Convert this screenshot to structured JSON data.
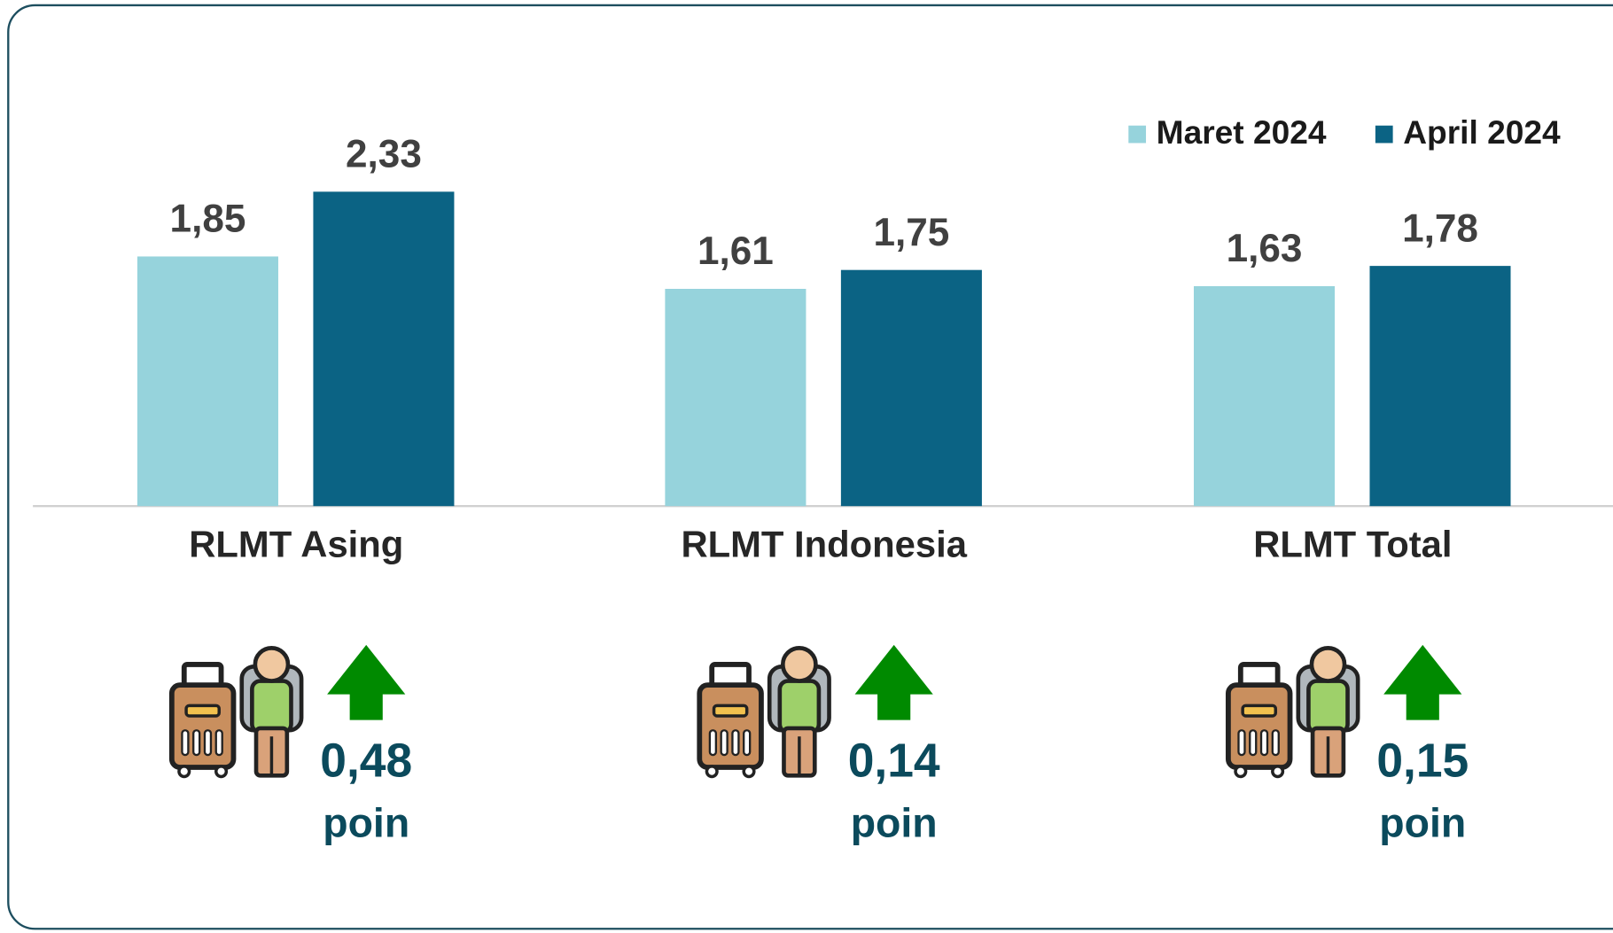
{
  "chart_data": {
    "type": "bar",
    "categories": [
      "RLMT Asing",
      "RLMT Indonesia",
      "RLMT Total"
    ],
    "series": [
      {
        "name": "Maret 2024",
        "color": "#96d3dc",
        "values": [
          1.85,
          1.61,
          1.63
        ],
        "value_labels": [
          "1,85",
          "1,61",
          "1,63"
        ]
      },
      {
        "name": "April 2024",
        "color": "#0b6384",
        "values": [
          2.33,
          1.75,
          1.78
        ],
        "value_labels": [
          "2,33",
          "1,75",
          "1,78"
        ]
      }
    ],
    "ylim": [
      0,
      2.5
    ],
    "legend": "top-right",
    "changes": {
      "values": [
        0.48,
        0.14,
        0.15
      ],
      "value_labels": [
        "0,48",
        "0,14",
        "0,15"
      ],
      "unit": "poin",
      "color": "#0b4a5c",
      "arrow_color": "#008a00"
    }
  }
}
